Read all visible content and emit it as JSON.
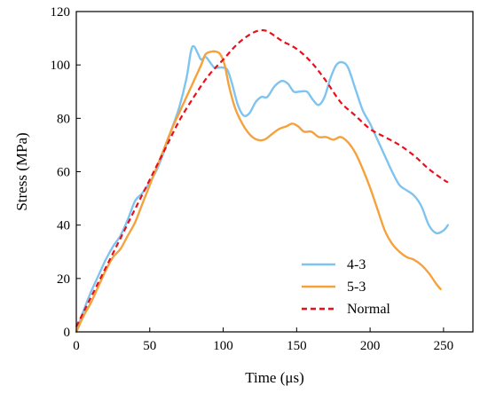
{
  "chart_data": {
    "type": "line",
    "xlabel": "Time (μs)",
    "ylabel": "Stress (MPa)",
    "xlim": [
      0,
      270
    ],
    "ylim": [
      0,
      120
    ],
    "x_ticks": [
      0,
      50,
      100,
      150,
      200,
      250
    ],
    "y_ticks": [
      0,
      20,
      40,
      60,
      80,
      100,
      120
    ],
    "grid": false,
    "legend_position": "bottom-right",
    "series": [
      {
        "name": "4-3",
        "color": "#7fc4f0",
        "dash": "solid",
        "points": [
          [
            0,
            0
          ],
          [
            5,
            8
          ],
          [
            10,
            15
          ],
          [
            15,
            21
          ],
          [
            20,
            27
          ],
          [
            25,
            32
          ],
          [
            30,
            36
          ],
          [
            35,
            42
          ],
          [
            40,
            49
          ],
          [
            45,
            52
          ],
          [
            50,
            56
          ],
          [
            55,
            61
          ],
          [
            60,
            68
          ],
          [
            65,
            76
          ],
          [
            70,
            84
          ],
          [
            75,
            95
          ],
          [
            78,
            105
          ],
          [
            80,
            107
          ],
          [
            83,
            104
          ],
          [
            85,
            102
          ],
          [
            88,
            103
          ],
          [
            91,
            101
          ],
          [
            94,
            99
          ],
          [
            97,
            99
          ],
          [
            100,
            99
          ],
          [
            103,
            98
          ],
          [
            106,
            93
          ],
          [
            110,
            85
          ],
          [
            114,
            81
          ],
          [
            118,
            82
          ],
          [
            122,
            86
          ],
          [
            126,
            88
          ],
          [
            130,
            88
          ],
          [
            135,
            92
          ],
          [
            140,
            94
          ],
          [
            144,
            93
          ],
          [
            148,
            90
          ],
          [
            152,
            90
          ],
          [
            157,
            90
          ],
          [
            161,
            87
          ],
          [
            165,
            85
          ],
          [
            169,
            88
          ],
          [
            173,
            95
          ],
          [
            177,
            100
          ],
          [
            181,
            101
          ],
          [
            185,
            99
          ],
          [
            190,
            91
          ],
          [
            195,
            83
          ],
          [
            200,
            78
          ],
          [
            205,
            72
          ],
          [
            210,
            66
          ],
          [
            215,
            60
          ],
          [
            220,
            55
          ],
          [
            225,
            53
          ],
          [
            230,
            51
          ],
          [
            235,
            47
          ],
          [
            240,
            40
          ],
          [
            245,
            37
          ],
          [
            250,
            38
          ],
          [
            253,
            40
          ]
        ]
      },
      {
        "name": "5-3",
        "color": "#f5a23c",
        "dash": "solid",
        "points": [
          [
            0,
            0
          ],
          [
            5,
            6
          ],
          [
            10,
            11
          ],
          [
            15,
            17
          ],
          [
            20,
            23
          ],
          [
            25,
            28
          ],
          [
            30,
            31
          ],
          [
            35,
            36
          ],
          [
            40,
            41
          ],
          [
            45,
            48
          ],
          [
            50,
            55
          ],
          [
            55,
            62
          ],
          [
            60,
            69
          ],
          [
            65,
            76
          ],
          [
            70,
            82
          ],
          [
            75,
            88
          ],
          [
            80,
            94
          ],
          [
            85,
            100
          ],
          [
            88,
            104
          ],
          [
            92,
            105
          ],
          [
            95,
            105
          ],
          [
            98,
            104
          ],
          [
            101,
            100
          ],
          [
            104,
            92
          ],
          [
            108,
            84
          ],
          [
            113,
            78
          ],
          [
            118,
            74
          ],
          [
            123,
            72
          ],
          [
            128,
            72
          ],
          [
            133,
            74
          ],
          [
            138,
            76
          ],
          [
            143,
            77
          ],
          [
            147,
            78
          ],
          [
            151,
            77
          ],
          [
            155,
            75
          ],
          [
            160,
            75
          ],
          [
            165,
            73
          ],
          [
            170,
            73
          ],
          [
            175,
            72
          ],
          [
            180,
            73
          ],
          [
            185,
            71
          ],
          [
            190,
            67
          ],
          [
            195,
            61
          ],
          [
            200,
            54
          ],
          [
            205,
            46
          ],
          [
            210,
            38
          ],
          [
            215,
            33
          ],
          [
            220,
            30
          ],
          [
            225,
            28
          ],
          [
            230,
            27
          ],
          [
            235,
            25
          ],
          [
            240,
            22
          ],
          [
            245,
            18
          ],
          [
            248,
            16
          ]
        ]
      },
      {
        "name": "Normal",
        "color": "#e8101c",
        "dash": "dashed",
        "points": [
          [
            0,
            2
          ],
          [
            10,
            13
          ],
          [
            20,
            24
          ],
          [
            30,
            35
          ],
          [
            40,
            46
          ],
          [
            50,
            57
          ],
          [
            60,
            68
          ],
          [
            70,
            79
          ],
          [
            80,
            88
          ],
          [
            90,
            96
          ],
          [
            100,
            102
          ],
          [
            110,
            108
          ],
          [
            120,
            112
          ],
          [
            127,
            113
          ],
          [
            132,
            112
          ],
          [
            140,
            109
          ],
          [
            150,
            106
          ],
          [
            160,
            101
          ],
          [
            170,
            94
          ],
          [
            180,
            86
          ],
          [
            190,
            81
          ],
          [
            200,
            76
          ],
          [
            210,
            73
          ],
          [
            220,
            70
          ],
          [
            230,
            66
          ],
          [
            240,
            61
          ],
          [
            250,
            57
          ],
          [
            253,
            56
          ]
        ]
      }
    ]
  }
}
